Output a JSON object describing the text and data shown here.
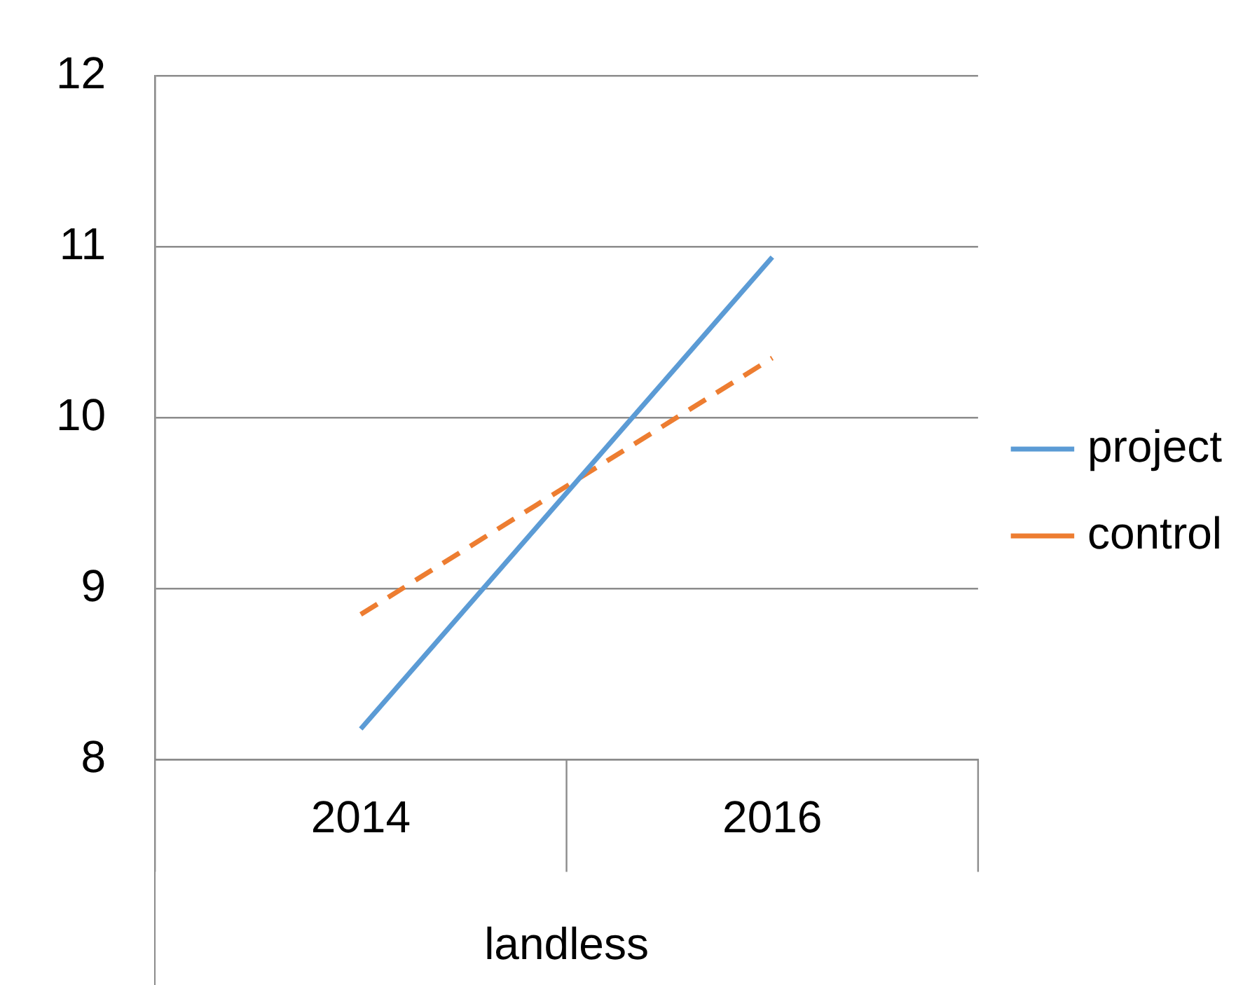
{
  "chart_data": {
    "type": "line",
    "xlabel": "landless",
    "categories": [
      "2014",
      "2016"
    ],
    "series": [
      {
        "name": "project",
        "color": "#5b9bd5",
        "line_style": "solid",
        "values": [
          8.18,
          10.94
        ]
      },
      {
        "name": "control",
        "color": "#ed7d31",
        "line_style": "dashed",
        "values": [
          8.85,
          10.35
        ]
      }
    ],
    "ylim": [
      8,
      12
    ],
    "yticks": [
      8,
      9,
      10,
      11,
      12
    ],
    "grid": "y",
    "legend": "right",
    "marker": "none"
  }
}
